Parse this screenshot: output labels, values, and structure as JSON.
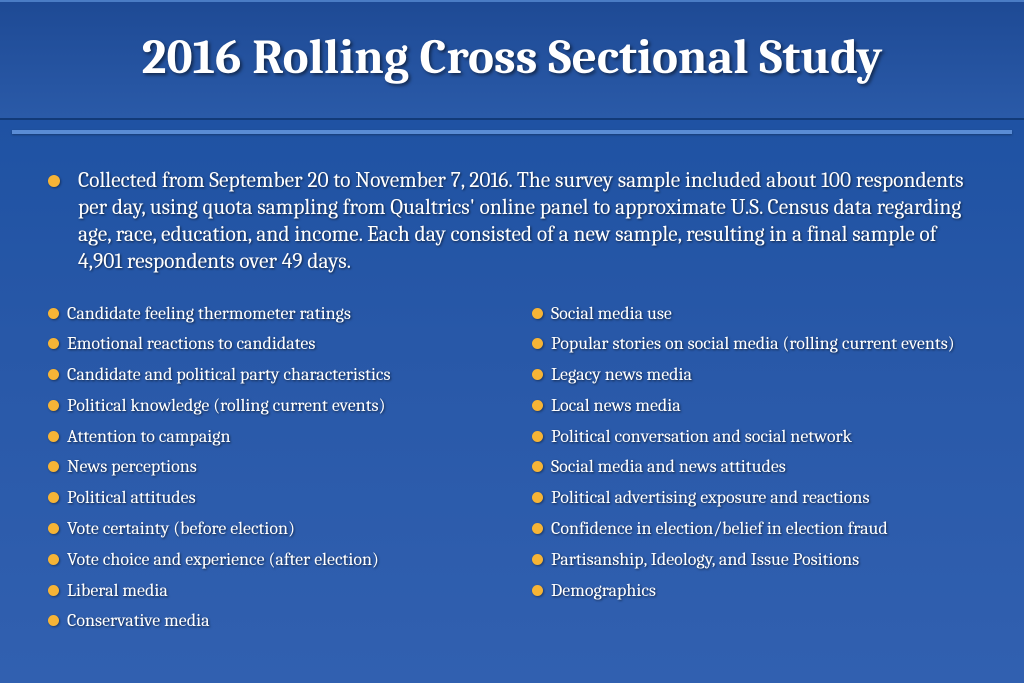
{
  "title": "2016 Rolling Cross Sectional Study",
  "intro": "Collected from September 20 to November 7, 2016. The survey sample included about 100 respondents per day, using quota sampling from Qualtrics' online panel to approximate U.S. Census data regarding age, race, education, and income. Each day consisted of a new sample, resulting in a final sample of 4,901 respondents over 49 days.",
  "leftColumn": [
    "Candidate feeling thermometer ratings",
    "Emotional reactions to candidates",
    "Candidate and political party characteristics",
    "Political knowledge (rolling current events)",
    "Attention to campaign",
    "News perceptions",
    "Political attitudes",
    "Vote certainty (before election)",
    "Vote choice and experience (after election)",
    "Liberal media",
    "Conservative media"
  ],
  "rightColumn": [
    "Social media use",
    "Popular stories on social media (rolling current events)",
    "Legacy news media",
    "Local news media",
    "Political conversation and social network",
    "Social media and news attitudes",
    "Political advertising exposure and reactions",
    "Confidence in election/belief in election fraud",
    "Partisanship, Ideology, and Issue Positions",
    "Demographics"
  ],
  "colors": {
    "bullet": "#f6b436",
    "bg_top": "#1a4fa0",
    "bg_bottom": "#3160b0",
    "divider": "#5a8cd5"
  }
}
